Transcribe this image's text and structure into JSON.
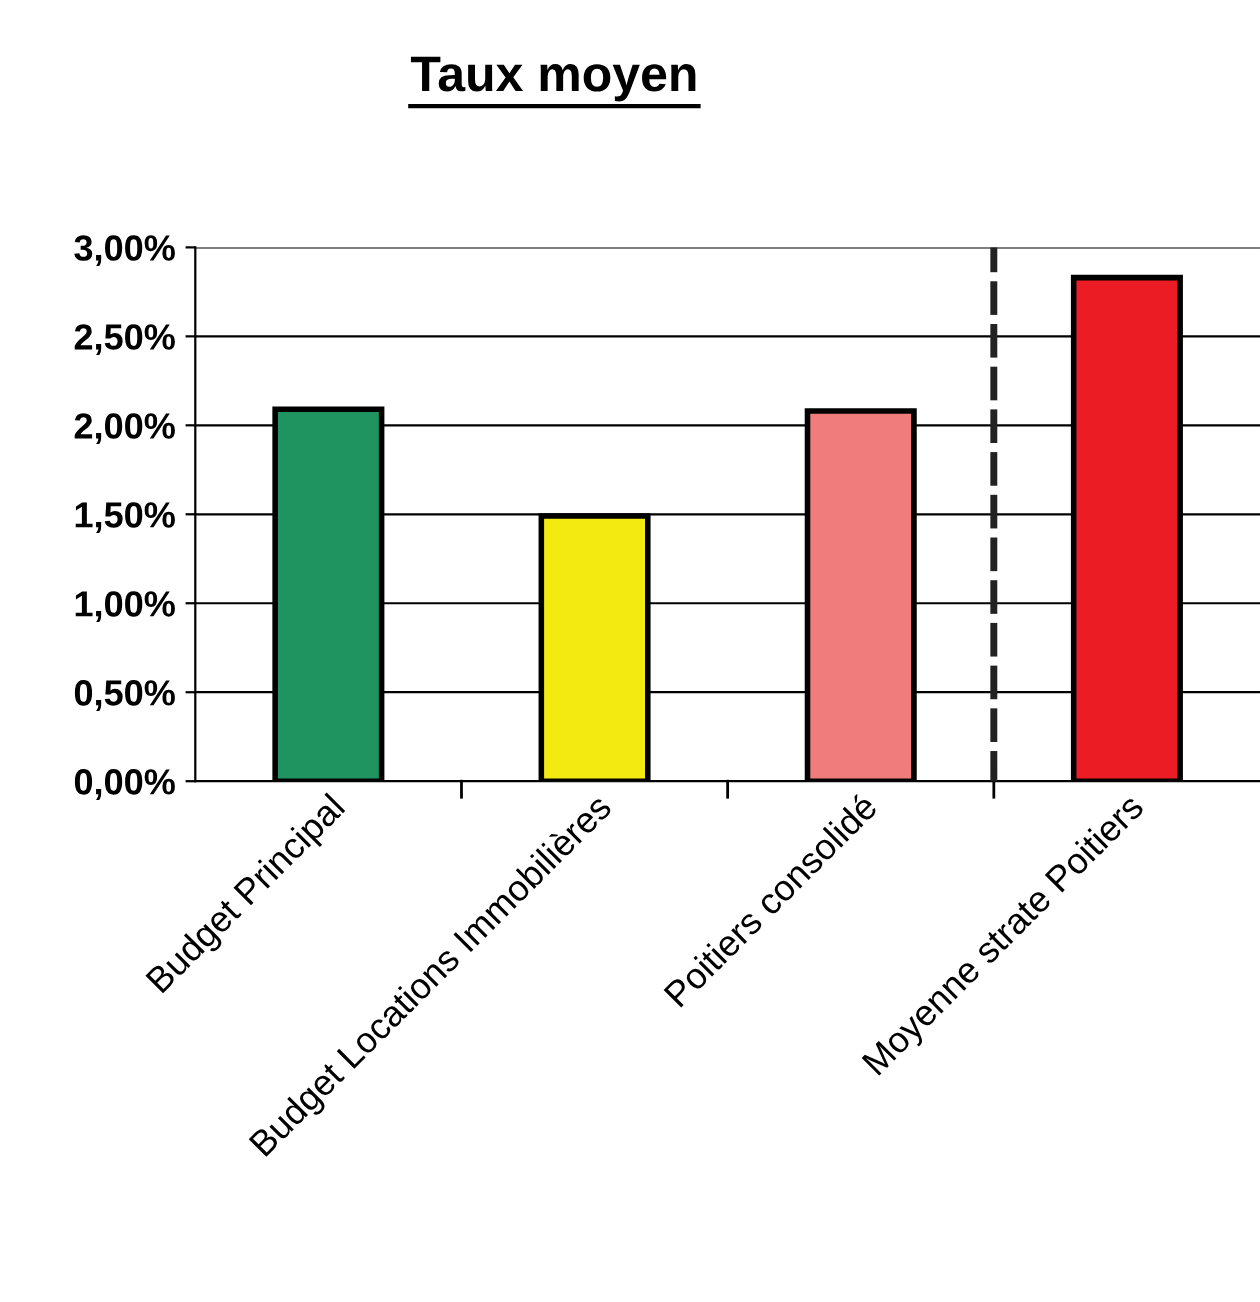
{
  "chart_data": {
    "type": "bar",
    "title": "Taux moyen",
    "categories": [
      "Budget Principal",
      "Budget Locations Immobilières",
      "Poitiers consolidé",
      "Moyenne strate Poitiers"
    ],
    "values": [
      2.09,
      1.49,
      2.08,
      2.83
    ],
    "colors": [
      "#1f9460",
      "#f2ea10",
      "#f07c7c",
      "#ec1c24"
    ],
    "ylim": [
      0,
      3
    ],
    "yticks": [
      {
        "value": 0,
        "label": "0,00%"
      },
      {
        "value": 0.5,
        "label": "0,50%"
      },
      {
        "value": 1,
        "label": "1,00%"
      },
      {
        "value": 1.5,
        "label": "1,50%"
      },
      {
        "value": 2,
        "label": "2,00%"
      },
      {
        "value": 2.5,
        "label": "2,50%"
      },
      {
        "value": 3,
        "label": "3,00%"
      }
    ],
    "grid": "y"
  }
}
